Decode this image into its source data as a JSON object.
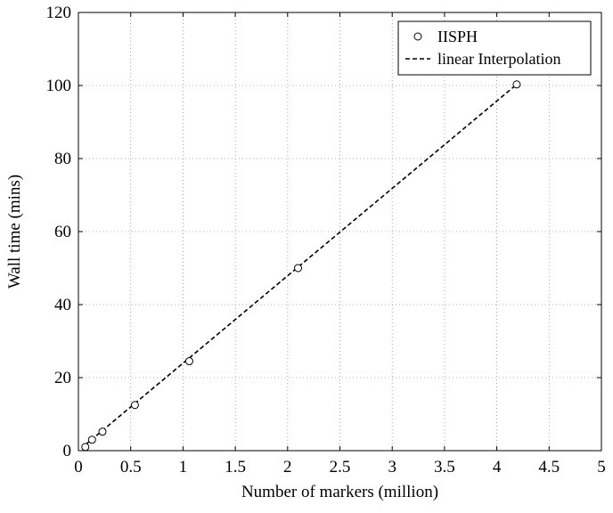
{
  "chart_data": {
    "type": "scatter",
    "title": "",
    "xlabel": "Number of markers (million)",
    "ylabel": "Wall time (mins)",
    "xlim": [
      0,
      5
    ],
    "ylim": [
      0,
      120
    ],
    "x_ticks": [
      0,
      0.5,
      1,
      1.5,
      2,
      2.5,
      3,
      3.5,
      4,
      4.5,
      5
    ],
    "x_tick_labels": [
      "0",
      "0.5",
      "1",
      "1.5",
      "2",
      "2.5",
      "3",
      "3.5",
      "4",
      "4.5",
      "5"
    ],
    "y_ticks": [
      0,
      20,
      40,
      60,
      80,
      100,
      120
    ],
    "y_tick_labels": [
      "0",
      "20",
      "40",
      "60",
      "80",
      "100",
      "120"
    ],
    "grid": true,
    "legend_position": "top-right",
    "series": [
      {
        "name": "IISPH",
        "style": "markers",
        "marker": "open-circle",
        "color": "#000000",
        "x": [
          0.066,
          0.13,
          0.23,
          0.54,
          1.06,
          2.1,
          4.19
        ],
        "y": [
          1.0,
          3.0,
          5.2,
          12.5,
          24.5,
          50.0,
          100.3
        ]
      },
      {
        "name": "linear Interpolation",
        "style": "dashed-line",
        "color": "#000000",
        "x": [
          0.066,
          4.19
        ],
        "y": [
          1.6,
          100.3
        ]
      }
    ]
  }
}
